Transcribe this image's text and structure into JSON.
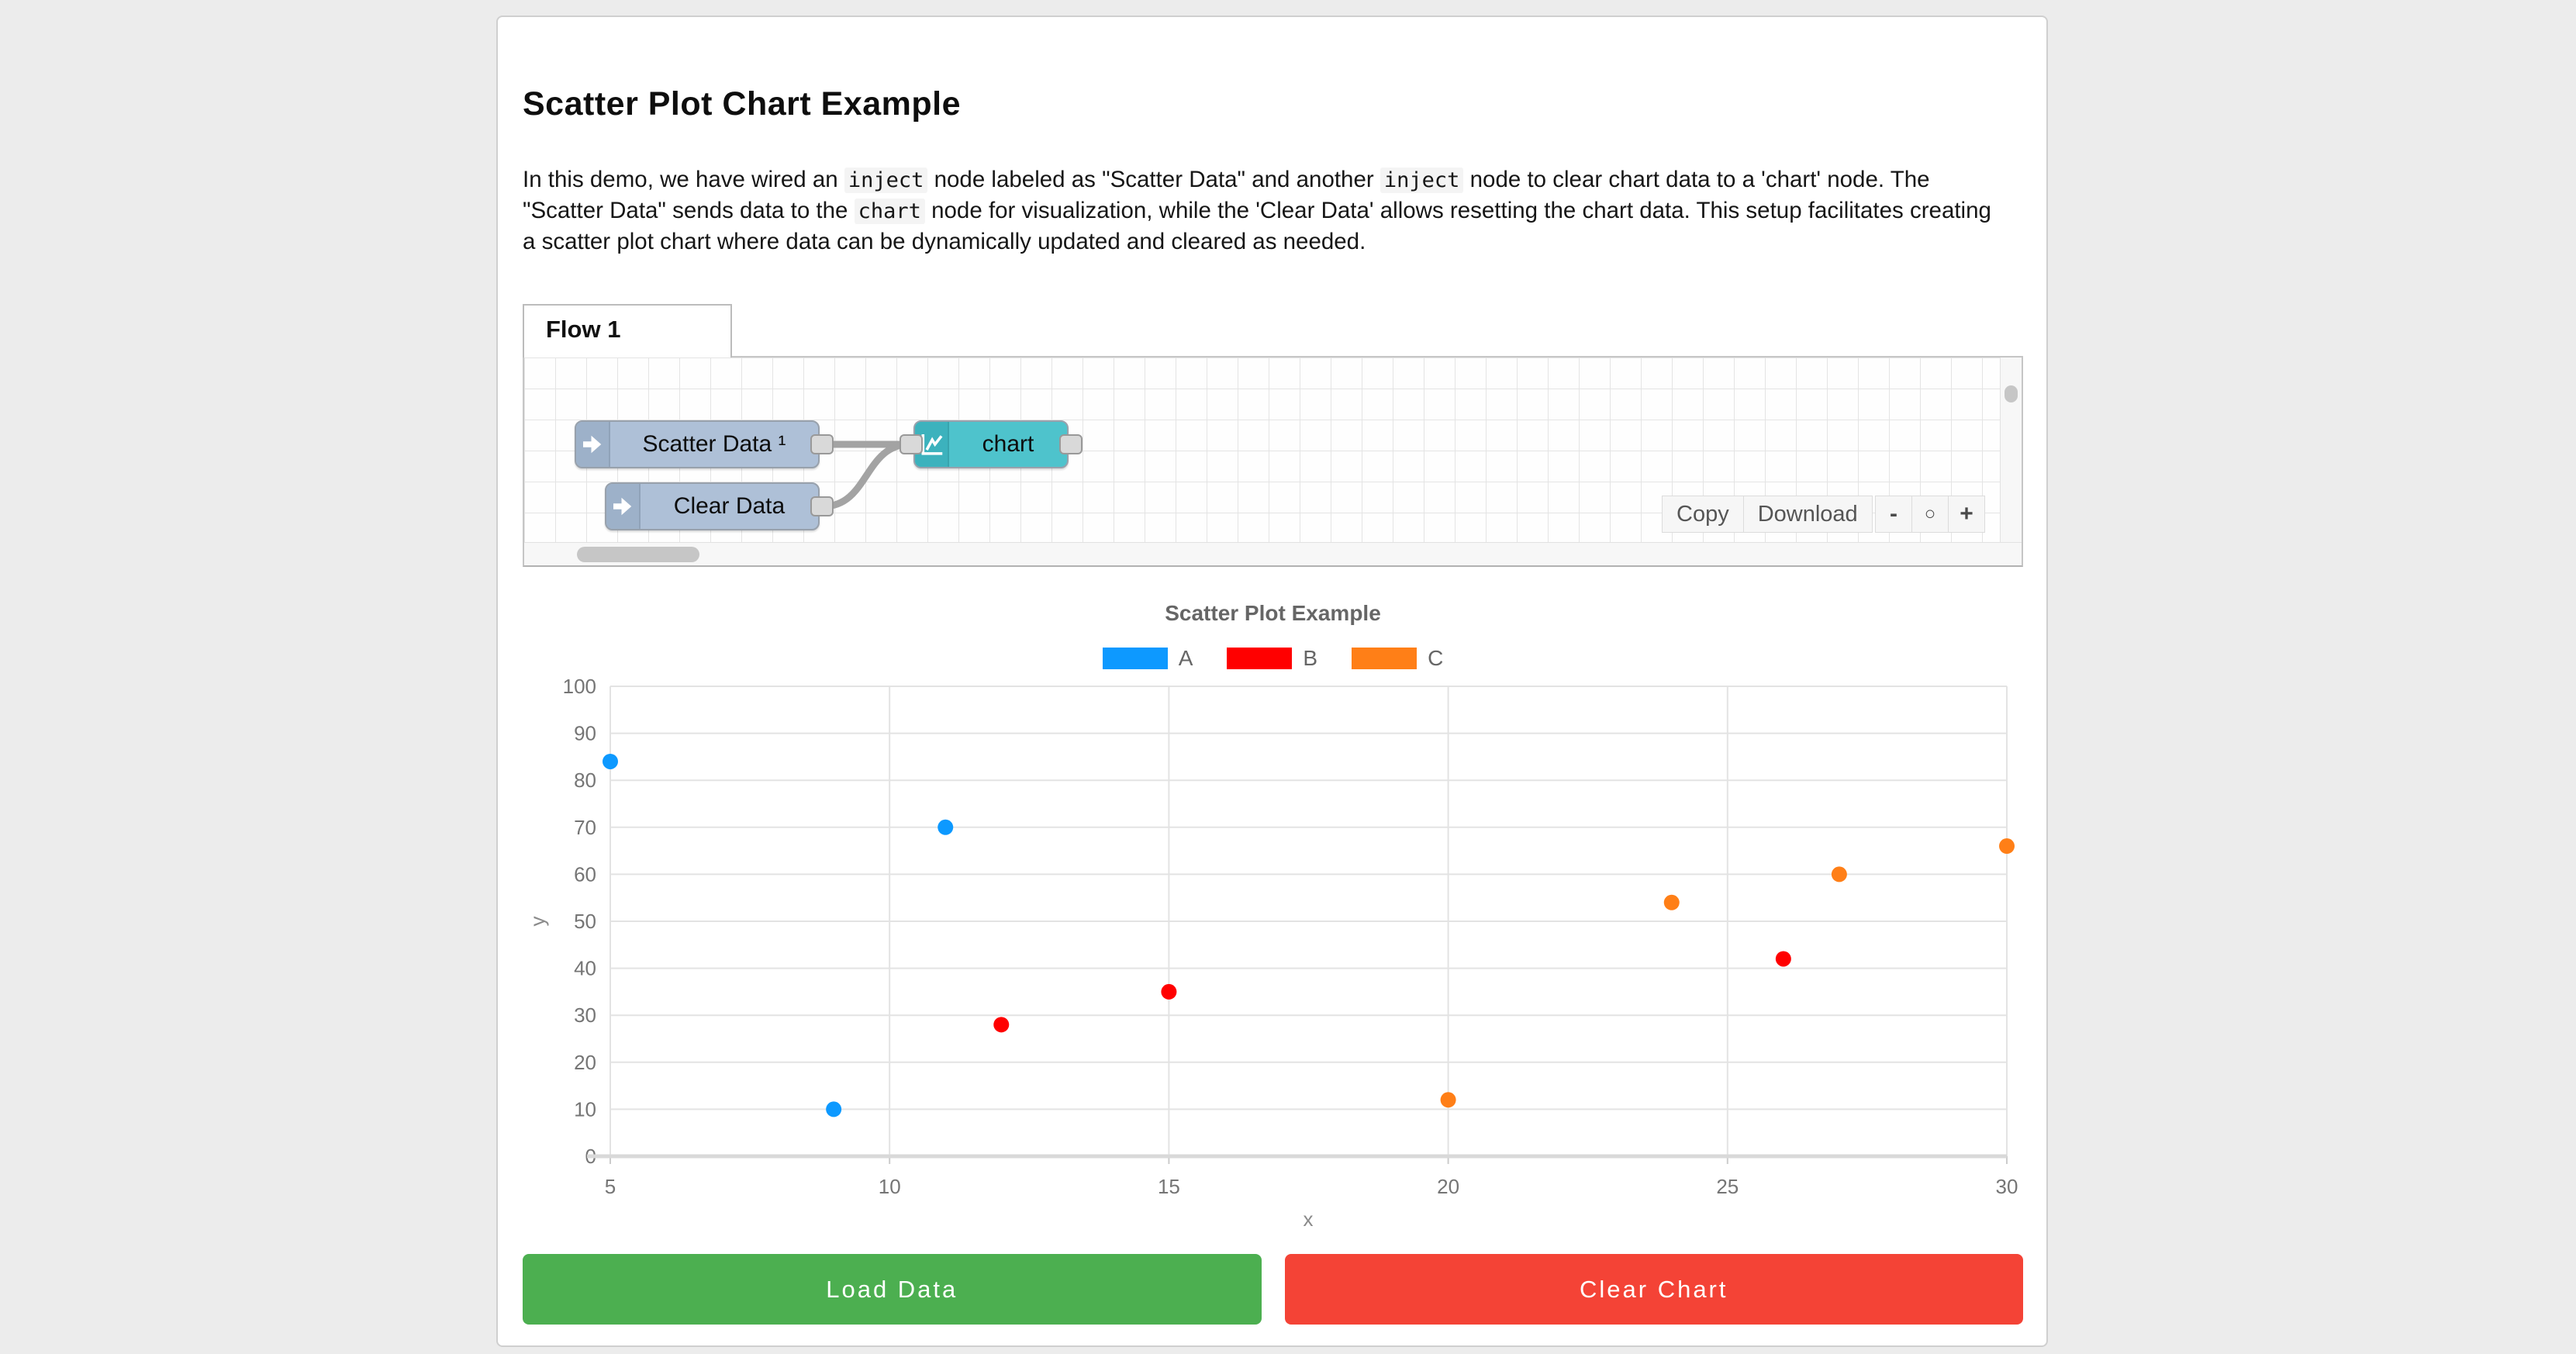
{
  "page": {
    "title": "Scatter Plot Chart Example"
  },
  "intro": {
    "segments": [
      {
        "code": false,
        "text": "In this demo, we have wired an "
      },
      {
        "code": true,
        "text": "inject"
      },
      {
        "code": false,
        "text": " node labeled as \"Scatter Data\" and another "
      },
      {
        "code": true,
        "text": "inject"
      },
      {
        "code": false,
        "text": " node to clear chart data to a 'chart' node. The \"Scatter Data\" sends data to the "
      },
      {
        "code": true,
        "text": "chart"
      },
      {
        "code": false,
        "text": " node for visualization, while the 'Clear Data' allows resetting the chart data. This setup facilitates creating a scatter plot chart where data can be dynamically updated and cleared as needed."
      }
    ]
  },
  "flow": {
    "tab_label": "Flow 1",
    "nodes": [
      {
        "label": "Scatter Data ¹",
        "type": "inject",
        "icon": "inject-arrow-icon",
        "body_color": "#aec0d7",
        "icon_color": "#9db1c9"
      },
      {
        "label": "Clear Data",
        "type": "inject",
        "icon": "inject-arrow-icon",
        "body_color": "#aec0d7",
        "icon_color": "#9db1c9"
      },
      {
        "label": "chart",
        "type": "chart",
        "icon": "line-chart-icon",
        "body_color": "#4ec3cc",
        "icon_color": "#3cb2bd"
      }
    ],
    "toolbar": {
      "copy": "Copy",
      "download": "Download"
    },
    "zoom": {
      "out": "-",
      "reset": "○",
      "in": "+"
    }
  },
  "chart_data": {
    "type": "scatter",
    "title": "Scatter Plot Example",
    "xlabel": "x",
    "ylabel": "y",
    "xlim": [
      5,
      30
    ],
    "ylim": [
      0,
      100
    ],
    "xticks": [
      5,
      10,
      15,
      20,
      25,
      30
    ],
    "yticks": [
      0,
      10,
      20,
      30,
      40,
      50,
      60,
      70,
      80,
      90,
      100
    ],
    "grid": true,
    "legend_position": "top",
    "series": [
      {
        "name": "A",
        "color": "#0d99ff",
        "points": [
          [
            5,
            84
          ],
          [
            9,
            10
          ],
          [
            11,
            70
          ]
        ]
      },
      {
        "name": "B",
        "color": "#ff0000",
        "points": [
          [
            12,
            28
          ],
          [
            15,
            35
          ],
          [
            26,
            42
          ]
        ]
      },
      {
        "name": "C",
        "color": "#ff7f17",
        "points": [
          [
            20,
            12
          ],
          [
            24,
            54
          ],
          [
            27,
            60
          ],
          [
            30,
            66
          ]
        ]
      }
    ]
  },
  "actions": {
    "load": "Load Data",
    "clear": "Clear Chart"
  },
  "colors": {
    "load_button": "#4caf50",
    "clear_button": "#f44336",
    "wire": "#a3a3a3"
  }
}
